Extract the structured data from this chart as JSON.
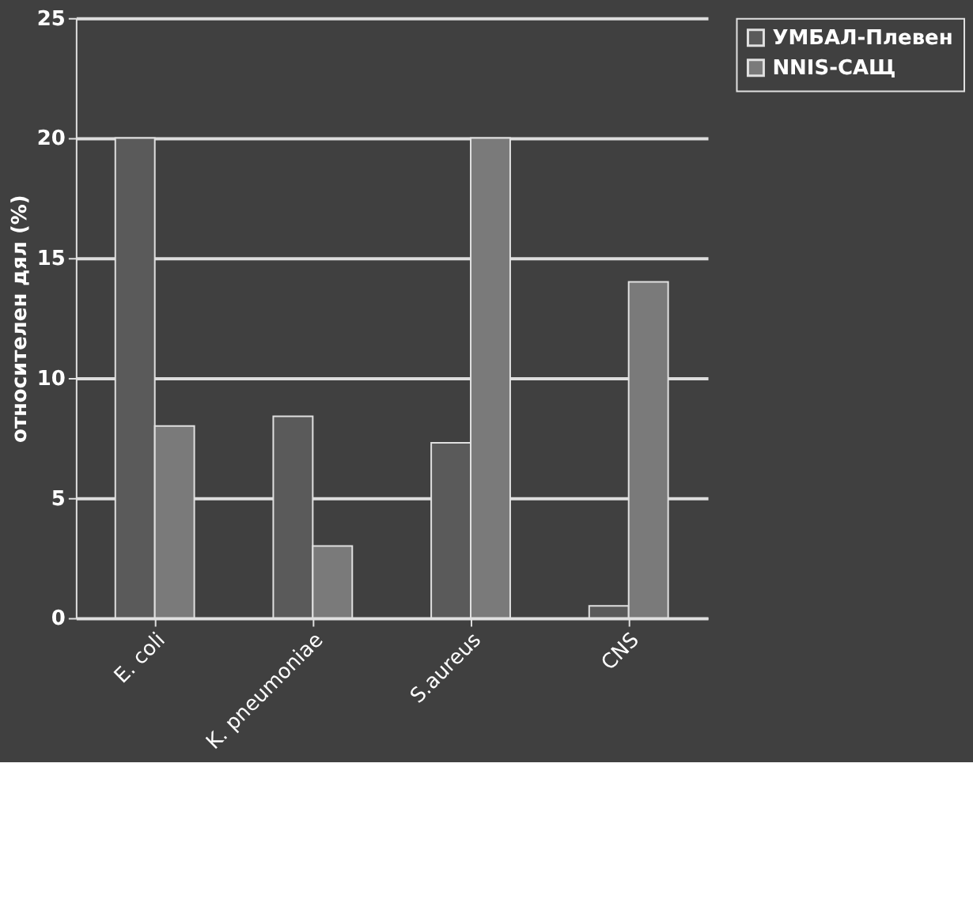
{
  "chart_data": {
    "type": "bar",
    "ylabel": "относителен дял (%)",
    "categories": [
      "E. coli",
      "K. pneumoniae",
      "S.aureus",
      "CNS"
    ],
    "series": [
      {
        "name": "УМБАЛ-Плевен",
        "color": "#5a5a5a",
        "values": [
          20,
          8.4,
          7.3,
          0.5
        ]
      },
      {
        "name": "NNIS-САЩ",
        "color": "#7a7a7a",
        "values": [
          8,
          3,
          20,
          14
        ]
      }
    ],
    "ylim": [
      0,
      25
    ],
    "yticks": [
      0,
      5,
      10,
      15,
      20,
      25
    ],
    "grid": "y",
    "legend": "right"
  }
}
